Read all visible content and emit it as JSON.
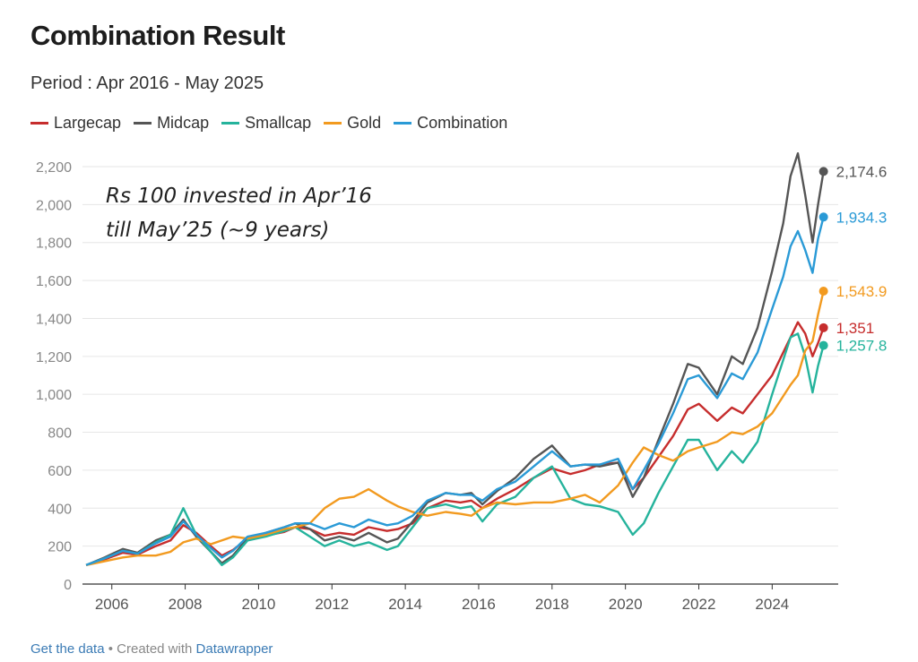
{
  "chart_data": {
    "type": "line",
    "title": "Combination Result",
    "subtitle": "Period : Apr 2016 - May 2025",
    "annotation": [
      "Rs 100 invested in Apr’16",
      "till May’25 (~9 years)"
    ],
    "ylim": [
      0,
      2200
    ],
    "y_ticks": [
      0,
      200,
      400,
      600,
      800,
      1000,
      1200,
      1400,
      1600,
      1800,
      2000,
      2200
    ],
    "y_tick_labels": [
      "0",
      "200",
      "400",
      "600",
      "800",
      "1,000",
      "1,200",
      "1,400",
      "1,600",
      "1,800",
      "2,000",
      "2,200"
    ],
    "xlim": [
      2005.2,
      2025.8
    ],
    "x_ticks": [
      2006,
      2008,
      2010,
      2012,
      2014,
      2016,
      2018,
      2020,
      2022,
      2024
    ],
    "x_tick_labels": [
      "2006",
      "2008",
      "2010",
      "2012",
      "2014",
      "2016",
      "2018",
      "2020",
      "2022",
      "2024"
    ],
    "grid": true,
    "legend_position": "top-left",
    "series": [
      {
        "name": "Largecap",
        "color": "#c62d2d",
        "end_label": "1,351",
        "points": [
          [
            2005.3,
            100
          ],
          [
            2005.8,
            130
          ],
          [
            2006.3,
            165
          ],
          [
            2006.7,
            155
          ],
          [
            2007.2,
            200
          ],
          [
            2007.6,
            230
          ],
          [
            2007.95,
            310
          ],
          [
            2008.3,
            270
          ],
          [
            2008.7,
            200
          ],
          [
            2009.0,
            150
          ],
          [
            2009.3,
            180
          ],
          [
            2009.7,
            240
          ],
          [
            2010.2,
            255
          ],
          [
            2010.7,
            275
          ],
          [
            2011.0,
            300
          ],
          [
            2011.4,
            290
          ],
          [
            2011.8,
            255
          ],
          [
            2012.2,
            270
          ],
          [
            2012.6,
            260
          ],
          [
            2013.0,
            300
          ],
          [
            2013.5,
            280
          ],
          [
            2013.8,
            290
          ],
          [
            2014.2,
            320
          ],
          [
            2014.6,
            400
          ],
          [
            2015.1,
            440
          ],
          [
            2015.5,
            430
          ],
          [
            2015.8,
            440
          ],
          [
            2016.1,
            400
          ],
          [
            2016.5,
            450
          ],
          [
            2017.0,
            500
          ],
          [
            2017.5,
            560
          ],
          [
            2018.0,
            610
          ],
          [
            2018.5,
            580
          ],
          [
            2018.9,
            600
          ],
          [
            2019.3,
            630
          ],
          [
            2019.8,
            640
          ],
          [
            2020.2,
            500
          ],
          [
            2020.5,
            560
          ],
          [
            2020.9,
            670
          ],
          [
            2021.3,
            780
          ],
          [
            2021.7,
            920
          ],
          [
            2022.0,
            950
          ],
          [
            2022.5,
            860
          ],
          [
            2022.9,
            930
          ],
          [
            2023.2,
            900
          ],
          [
            2023.6,
            1000
          ],
          [
            2024.0,
            1100
          ],
          [
            2024.5,
            1300
          ],
          [
            2024.7,
            1380
          ],
          [
            2024.9,
            1320
          ],
          [
            2025.1,
            1200
          ],
          [
            2025.25,
            1270
          ],
          [
            2025.4,
            1351
          ]
        ]
      },
      {
        "name": "Midcap",
        "color": "#555555",
        "end_label": "2,174.6",
        "points": [
          [
            2005.3,
            100
          ],
          [
            2005.8,
            140
          ],
          [
            2006.3,
            185
          ],
          [
            2006.7,
            165
          ],
          [
            2007.2,
            230
          ],
          [
            2007.6,
            260
          ],
          [
            2007.95,
            340
          ],
          [
            2008.3,
            250
          ],
          [
            2008.7,
            170
          ],
          [
            2009.0,
            110
          ],
          [
            2009.3,
            150
          ],
          [
            2009.7,
            240
          ],
          [
            2010.2,
            270
          ],
          [
            2010.7,
            300
          ],
          [
            2011.0,
            320
          ],
          [
            2011.4,
            290
          ],
          [
            2011.8,
            230
          ],
          [
            2012.2,
            250
          ],
          [
            2012.6,
            230
          ],
          [
            2013.0,
            270
          ],
          [
            2013.5,
            220
          ],
          [
            2013.8,
            240
          ],
          [
            2014.2,
            330
          ],
          [
            2014.6,
            430
          ],
          [
            2015.1,
            480
          ],
          [
            2015.5,
            470
          ],
          [
            2015.8,
            480
          ],
          [
            2016.1,
            420
          ],
          [
            2016.5,
            490
          ],
          [
            2017.0,
            560
          ],
          [
            2017.5,
            660
          ],
          [
            2018.0,
            730
          ],
          [
            2018.5,
            620
          ],
          [
            2018.9,
            630
          ],
          [
            2019.3,
            620
          ],
          [
            2019.8,
            640
          ],
          [
            2020.2,
            460
          ],
          [
            2020.5,
            560
          ],
          [
            2020.9,
            760
          ],
          [
            2021.3,
            950
          ],
          [
            2021.7,
            1160
          ],
          [
            2022.0,
            1140
          ],
          [
            2022.5,
            1000
          ],
          [
            2022.9,
            1200
          ],
          [
            2023.2,
            1160
          ],
          [
            2023.6,
            1350
          ],
          [
            2024.0,
            1650
          ],
          [
            2024.3,
            1900
          ],
          [
            2024.5,
            2150
          ],
          [
            2024.7,
            2270
          ],
          [
            2024.9,
            2050
          ],
          [
            2025.1,
            1800
          ],
          [
            2025.25,
            2000
          ],
          [
            2025.4,
            2174.6
          ]
        ]
      },
      {
        "name": "Smallcap",
        "color": "#25b39c",
        "end_label": "1,257.8",
        "points": [
          [
            2005.3,
            100
          ],
          [
            2005.8,
            135
          ],
          [
            2006.3,
            175
          ],
          [
            2006.7,
            160
          ],
          [
            2007.2,
            220
          ],
          [
            2007.6,
            260
          ],
          [
            2007.95,
            400
          ],
          [
            2008.3,
            260
          ],
          [
            2008.7,
            170
          ],
          [
            2009.0,
            100
          ],
          [
            2009.3,
            140
          ],
          [
            2009.7,
            230
          ],
          [
            2010.2,
            250
          ],
          [
            2010.7,
            280
          ],
          [
            2011.0,
            300
          ],
          [
            2011.4,
            250
          ],
          [
            2011.8,
            200
          ],
          [
            2012.2,
            230
          ],
          [
            2012.6,
            200
          ],
          [
            2013.0,
            220
          ],
          [
            2013.5,
            180
          ],
          [
            2013.8,
            200
          ],
          [
            2014.2,
            300
          ],
          [
            2014.6,
            400
          ],
          [
            2015.1,
            420
          ],
          [
            2015.5,
            400
          ],
          [
            2015.8,
            410
          ],
          [
            2016.1,
            330
          ],
          [
            2016.5,
            420
          ],
          [
            2017.0,
            460
          ],
          [
            2017.5,
            560
          ],
          [
            2018.0,
            620
          ],
          [
            2018.5,
            450
          ],
          [
            2018.9,
            420
          ],
          [
            2019.3,
            410
          ],
          [
            2019.8,
            380
          ],
          [
            2020.2,
            260
          ],
          [
            2020.5,
            320
          ],
          [
            2020.9,
            480
          ],
          [
            2021.3,
            620
          ],
          [
            2021.7,
            760
          ],
          [
            2022.0,
            760
          ],
          [
            2022.5,
            600
          ],
          [
            2022.9,
            700
          ],
          [
            2023.2,
            640
          ],
          [
            2023.6,
            750
          ],
          [
            2024.0,
            1000
          ],
          [
            2024.5,
            1300
          ],
          [
            2024.7,
            1320
          ],
          [
            2024.9,
            1200
          ],
          [
            2025.1,
            1010
          ],
          [
            2025.25,
            1150
          ],
          [
            2025.4,
            1257.8
          ]
        ]
      },
      {
        "name": "Gold",
        "color": "#f29a1f",
        "end_label": "1,543.9",
        "points": [
          [
            2005.3,
            100
          ],
          [
            2005.8,
            120
          ],
          [
            2006.3,
            140
          ],
          [
            2006.7,
            150
          ],
          [
            2007.2,
            150
          ],
          [
            2007.6,
            170
          ],
          [
            2007.95,
            220
          ],
          [
            2008.3,
            240
          ],
          [
            2008.7,
            210
          ],
          [
            2009.0,
            230
          ],
          [
            2009.3,
            250
          ],
          [
            2009.7,
            240
          ],
          [
            2010.2,
            260
          ],
          [
            2010.7,
            290
          ],
          [
            2011.0,
            300
          ],
          [
            2011.4,
            320
          ],
          [
            2011.8,
            400
          ],
          [
            2012.2,
            450
          ],
          [
            2012.6,
            460
          ],
          [
            2013.0,
            500
          ],
          [
            2013.5,
            440
          ],
          [
            2013.8,
            410
          ],
          [
            2014.2,
            380
          ],
          [
            2014.6,
            360
          ],
          [
            2015.1,
            380
          ],
          [
            2015.5,
            370
          ],
          [
            2015.8,
            360
          ],
          [
            2016.1,
            400
          ],
          [
            2016.5,
            430
          ],
          [
            2017.0,
            420
          ],
          [
            2017.5,
            430
          ],
          [
            2018.0,
            430
          ],
          [
            2018.5,
            450
          ],
          [
            2018.9,
            470
          ],
          [
            2019.3,
            430
          ],
          [
            2019.8,
            520
          ],
          [
            2020.2,
            640
          ],
          [
            2020.5,
            720
          ],
          [
            2020.9,
            680
          ],
          [
            2021.3,
            650
          ],
          [
            2021.7,
            700
          ],
          [
            2022.0,
            720
          ],
          [
            2022.5,
            750
          ],
          [
            2022.9,
            800
          ],
          [
            2023.2,
            790
          ],
          [
            2023.6,
            830
          ],
          [
            2024.0,
            900
          ],
          [
            2024.5,
            1050
          ],
          [
            2024.7,
            1100
          ],
          [
            2024.9,
            1230
          ],
          [
            2025.1,
            1280
          ],
          [
            2025.25,
            1420
          ],
          [
            2025.4,
            1543.9
          ]
        ]
      },
      {
        "name": "Combination",
        "color": "#2a9ad6",
        "end_label": "1,934.3",
        "points": [
          [
            2005.3,
            100
          ],
          [
            2005.8,
            135
          ],
          [
            2006.3,
            175
          ],
          [
            2006.7,
            160
          ],
          [
            2007.2,
            215
          ],
          [
            2007.6,
            250
          ],
          [
            2007.95,
            330
          ],
          [
            2008.3,
            260
          ],
          [
            2008.7,
            190
          ],
          [
            2009.0,
            140
          ],
          [
            2009.3,
            175
          ],
          [
            2009.7,
            250
          ],
          [
            2010.2,
            270
          ],
          [
            2010.7,
            300
          ],
          [
            2011.0,
            320
          ],
          [
            2011.4,
            320
          ],
          [
            2011.8,
            290
          ],
          [
            2012.2,
            320
          ],
          [
            2012.6,
            300
          ],
          [
            2013.0,
            340
          ],
          [
            2013.5,
            310
          ],
          [
            2013.8,
            320
          ],
          [
            2014.2,
            360
          ],
          [
            2014.6,
            440
          ],
          [
            2015.1,
            480
          ],
          [
            2015.5,
            470
          ],
          [
            2015.8,
            470
          ],
          [
            2016.1,
            440
          ],
          [
            2016.5,
            500
          ],
          [
            2017.0,
            540
          ],
          [
            2017.5,
            620
          ],
          [
            2018.0,
            700
          ],
          [
            2018.5,
            620
          ],
          [
            2018.9,
            630
          ],
          [
            2019.3,
            630
          ],
          [
            2019.8,
            660
          ],
          [
            2020.2,
            500
          ],
          [
            2020.5,
            600
          ],
          [
            2020.9,
            740
          ],
          [
            2021.3,
            900
          ],
          [
            2021.7,
            1080
          ],
          [
            2022.0,
            1100
          ],
          [
            2022.5,
            980
          ],
          [
            2022.9,
            1110
          ],
          [
            2023.2,
            1080
          ],
          [
            2023.6,
            1220
          ],
          [
            2024.0,
            1450
          ],
          [
            2024.3,
            1620
          ],
          [
            2024.5,
            1780
          ],
          [
            2024.7,
            1860
          ],
          [
            2024.9,
            1760
          ],
          [
            2025.1,
            1640
          ],
          [
            2025.25,
            1820
          ],
          [
            2025.4,
            1934.3
          ]
        ]
      }
    ]
  },
  "footer": {
    "get_data": "Get the data",
    "separator": " • Created with ",
    "tool": "Datawrapper"
  }
}
